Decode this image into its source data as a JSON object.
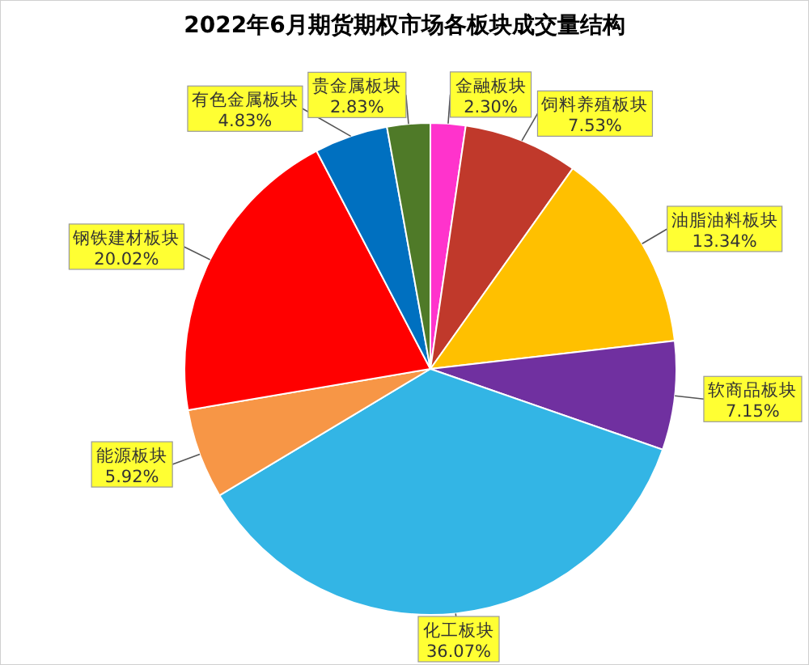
{
  "chart_data": {
    "type": "pie",
    "title": "2022年6月期货期权市场各板块成交量结构",
    "categories": [
      "金融板块",
      "饲料养殖板块",
      "油脂油料板块",
      "软商品板块",
      "化工板块",
      "能源板块",
      "钢铁建材板块",
      "有色金属板块",
      "贵金属板块"
    ],
    "values": [
      2.3,
      7.53,
      13.34,
      7.15,
      36.07,
      5.92,
      20.02,
      4.83,
      2.83
    ],
    "value_labels": [
      "2.30%",
      "7.53%",
      "13.34%",
      "7.15%",
      "36.07%",
      "5.92%",
      "20.02%",
      "4.83%",
      "2.83%"
    ],
    "colors": [
      "#ff33cc",
      "#c0392b",
      "#ffc000",
      "#7030a0",
      "#33b5e5",
      "#f79646",
      "#ff0000",
      "#0070c0",
      "#4f7a28"
    ]
  }
}
